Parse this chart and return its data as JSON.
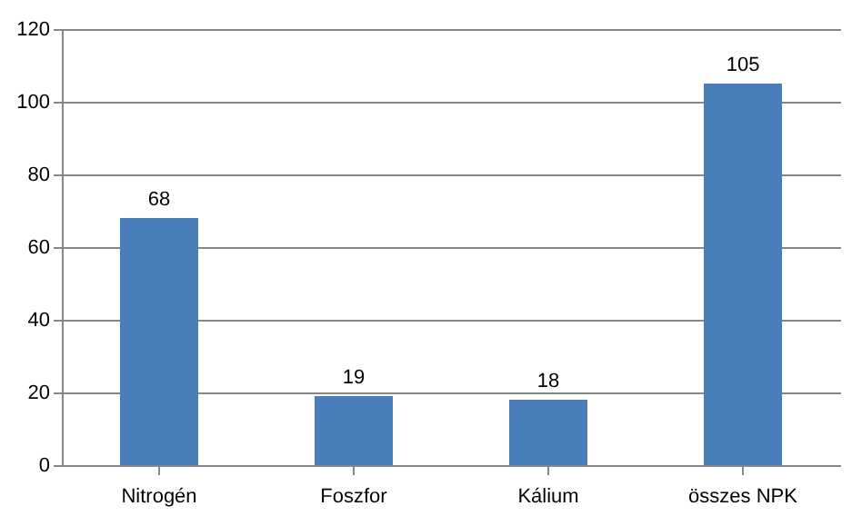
{
  "chart_data": {
    "type": "bar",
    "categories": [
      "Nitrogén",
      "Foszfor",
      "Kálium",
      "összes NPK"
    ],
    "values": [
      68,
      19,
      18,
      105
    ],
    "color": "#4a7ebb",
    "ylim": [
      0,
      120
    ],
    "yticks": [
      0,
      20,
      40,
      60,
      80,
      100,
      120
    ],
    "grid": "y",
    "data_labels": true
  }
}
